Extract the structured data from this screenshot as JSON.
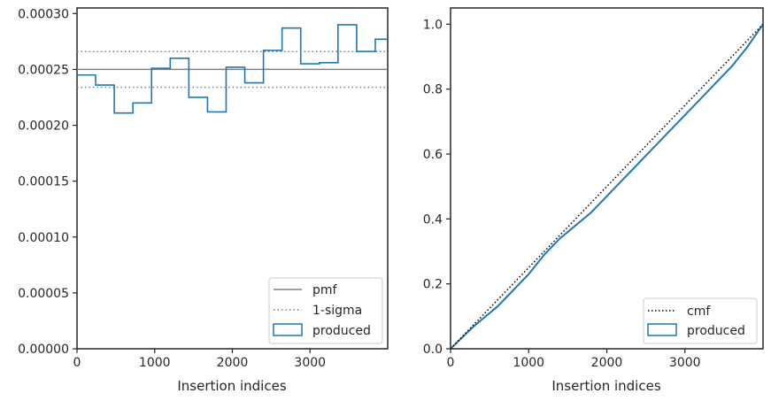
{
  "chart_data": [
    {
      "type": "line",
      "xlabel": "Insertion indices",
      "ylabel": "",
      "xlim": [
        0,
        4000
      ],
      "ylim": [
        0,
        0.000305
      ],
      "x_ticks": [
        0,
        1000,
        2000,
        3000
      ],
      "x_tick_labels": [
        "0",
        "1000",
        "2000",
        "3000"
      ],
      "y_ticks": [
        0,
        5e-05,
        0.0001,
        0.00015,
        0.0002,
        0.00025,
        0.0003
      ],
      "y_tick_labels": [
        "0.00000",
        "0.00005",
        "0.00010",
        "0.00015",
        "0.00020",
        "0.00025",
        "0.00030"
      ],
      "grid": false,
      "legend_position": "lower-right",
      "pmf": {
        "name": "pmf",
        "value": 0.00025,
        "color": "#808080"
      },
      "sigma": {
        "name": "1-sigma",
        "values": [
          0.000234,
          0.000266
        ],
        "color": "#808080"
      },
      "histogram": {
        "name": "produced",
        "color": "#1f77b4",
        "bin_edges": [
          0,
          240,
          480,
          720,
          960,
          1200,
          1440,
          1680,
          1920,
          2160,
          2400,
          2640,
          2880,
          3120,
          3360,
          3600,
          3840,
          4000
        ],
        "values": [
          0.000245,
          0.000236,
          0.000211,
          0.00022,
          0.000251,
          0.00026,
          0.000225,
          0.000212,
          0.000252,
          0.000238,
          0.000267,
          0.000287,
          0.000255,
          0.000256,
          0.00029,
          0.000266,
          0.000277
        ]
      }
    },
    {
      "type": "line",
      "xlabel": "Insertion indices",
      "ylabel": "",
      "xlim": [
        0,
        4000
      ],
      "ylim": [
        0,
        1.05
      ],
      "x_ticks": [
        0,
        1000,
        2000,
        3000
      ],
      "x_tick_labels": [
        "0",
        "1000",
        "2000",
        "3000"
      ],
      "y_ticks": [
        0,
        0.2,
        0.4,
        0.6,
        0.8,
        1.0
      ],
      "y_tick_labels": [
        "0.0",
        "0.2",
        "0.4",
        "0.6",
        "0.8",
        "1.0"
      ],
      "grid": false,
      "legend_position": "lower-right",
      "cmf": {
        "name": "cmf",
        "x": [
          0,
          4000
        ],
        "y": [
          0,
          1.0
        ],
        "color": "#000000"
      },
      "produced": {
        "name": "produced",
        "color": "#1f77b4",
        "x": [
          0,
          300,
          600,
          800,
          1000,
          1200,
          1400,
          1600,
          1800,
          2000,
          2200,
          2400,
          2600,
          2800,
          3000,
          3200,
          3400,
          3600,
          3800,
          4000
        ],
        "y": [
          0,
          0.07,
          0.13,
          0.18,
          0.23,
          0.29,
          0.34,
          0.38,
          0.42,
          0.47,
          0.52,
          0.57,
          0.62,
          0.67,
          0.72,
          0.77,
          0.82,
          0.87,
          0.93,
          1.0
        ]
      }
    }
  ]
}
